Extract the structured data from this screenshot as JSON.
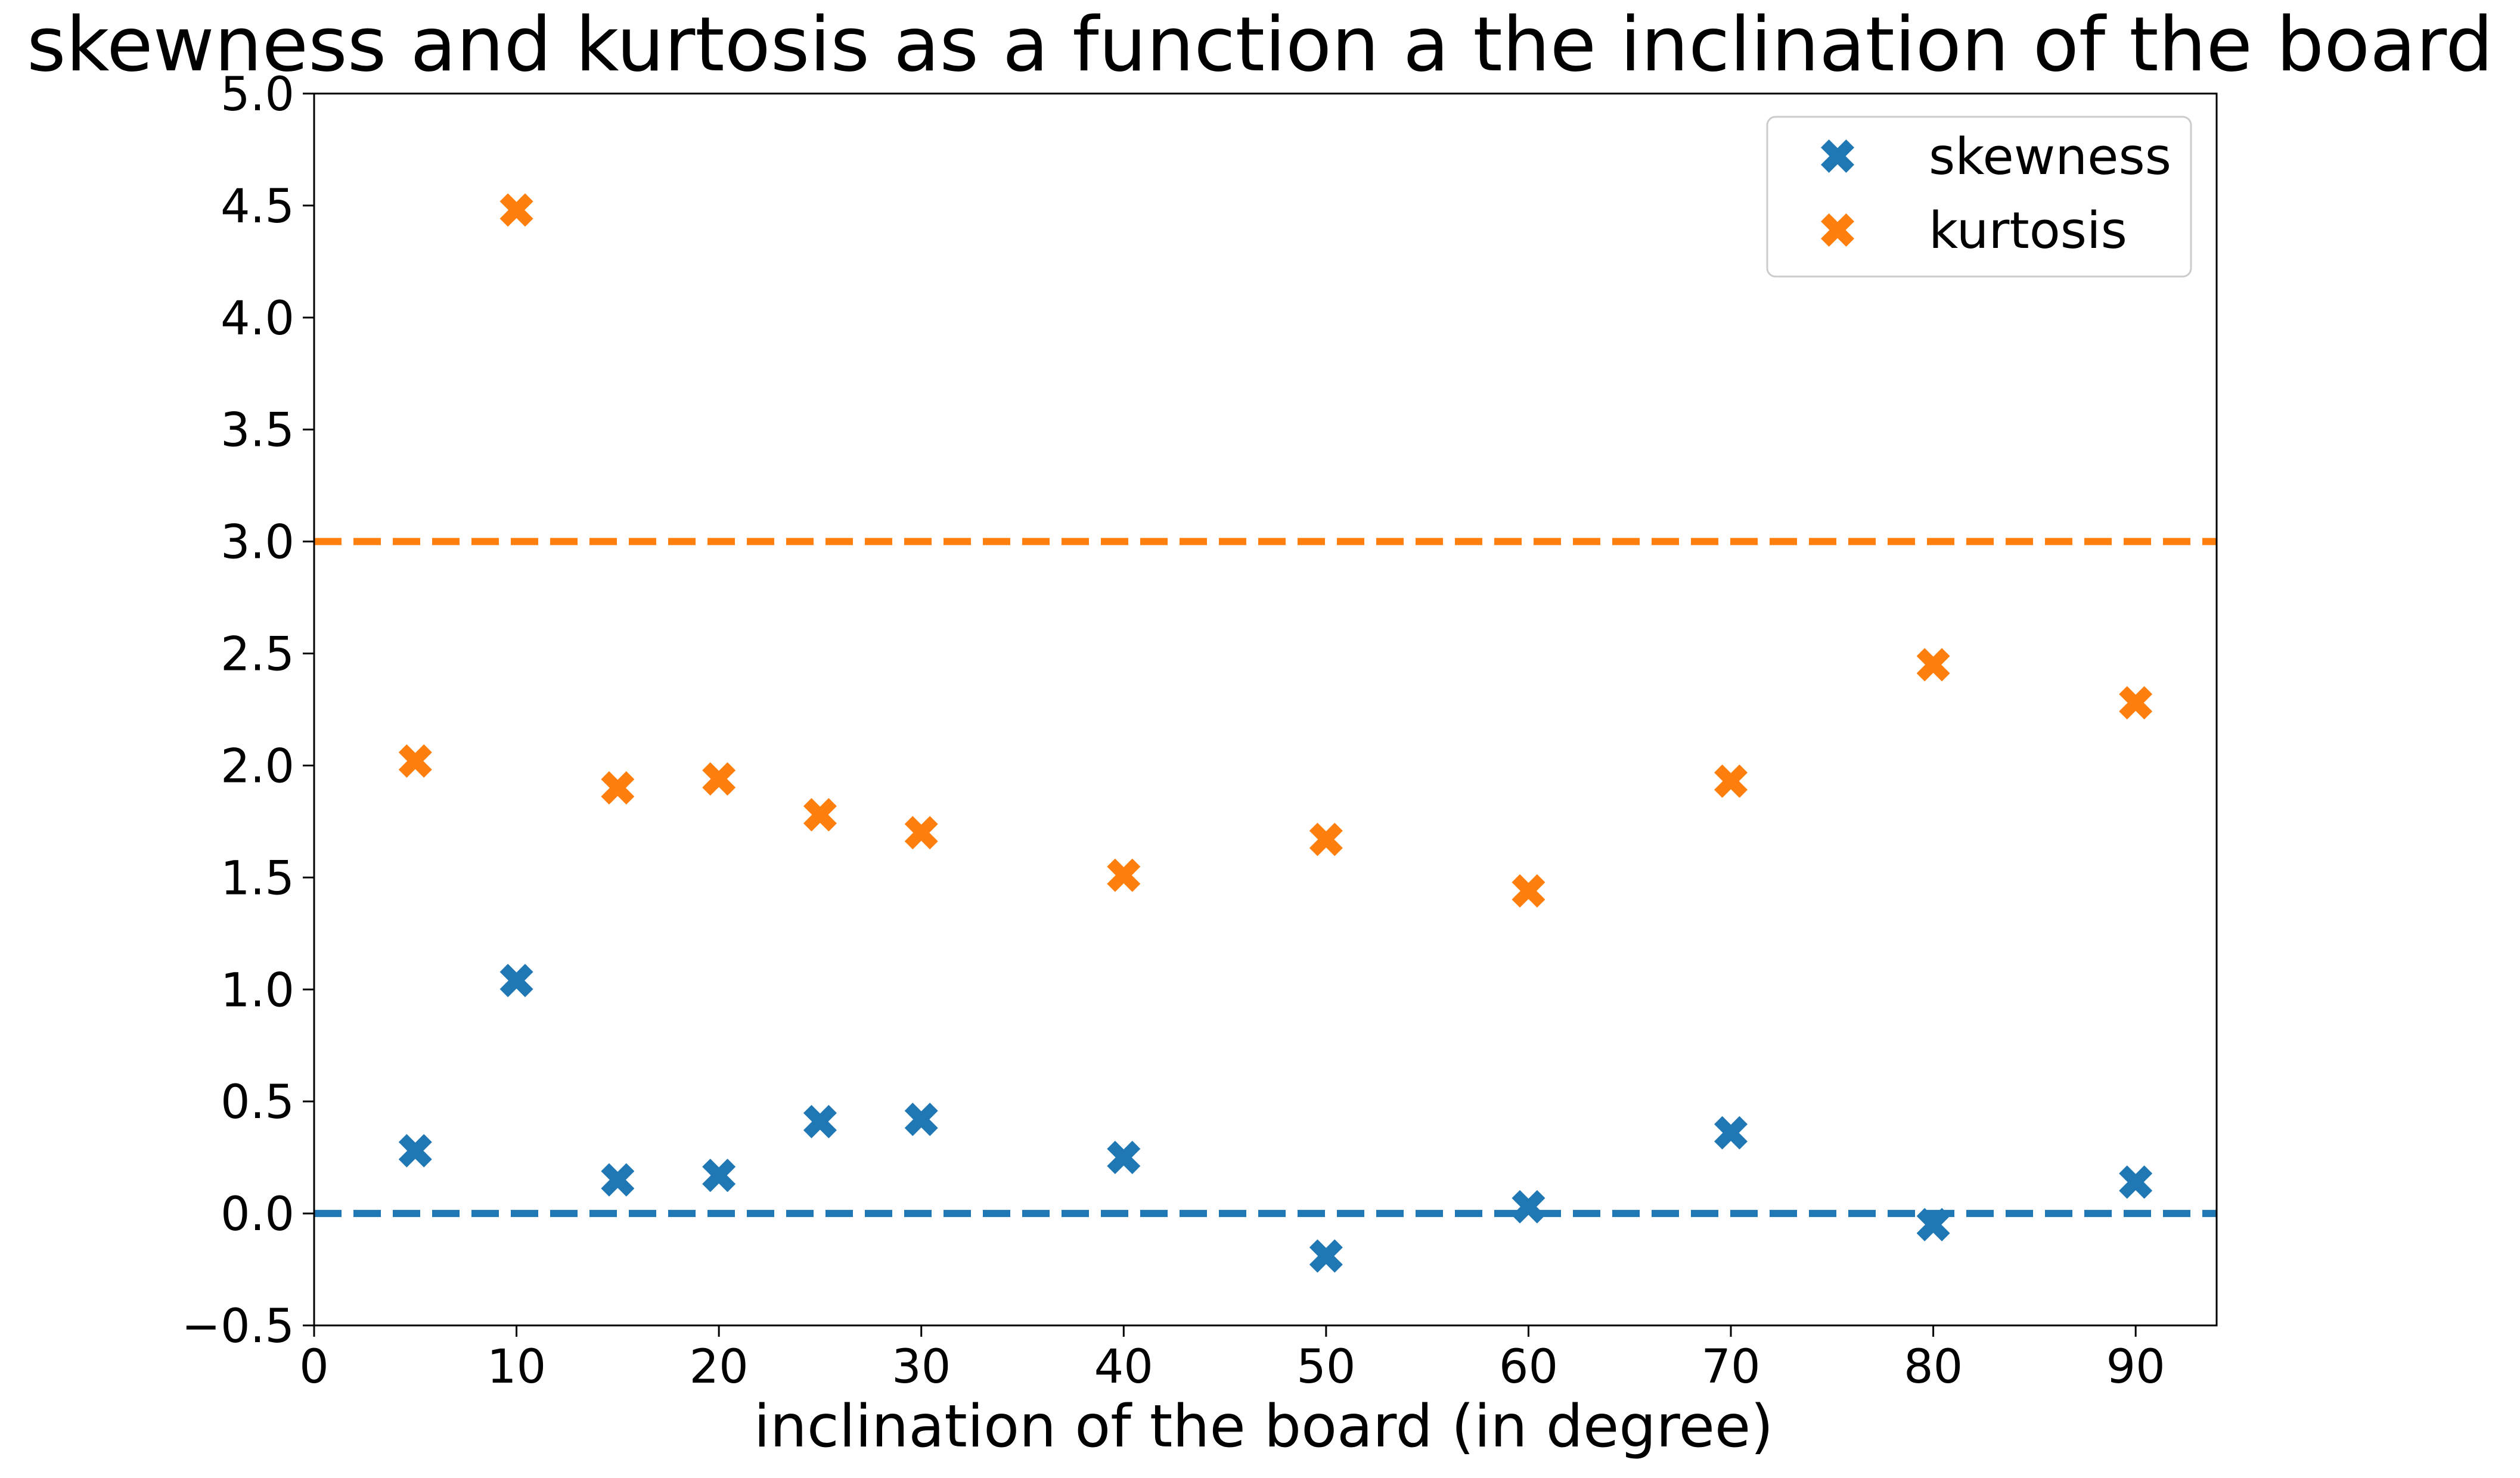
{
  "chart_data": {
    "type": "scatter",
    "title": "skewness and kurtosis as a function a the inclination of the board",
    "xlabel": "inclination of the board (in degree)",
    "ylabel": "",
    "xlim": [
      0,
      94
    ],
    "ylim": [
      -0.5,
      5.0
    ],
    "xticks": [
      0,
      10,
      20,
      30,
      40,
      50,
      60,
      70,
      80,
      90
    ],
    "yticks": [
      -0.5,
      0.0,
      0.5,
      1.0,
      1.5,
      2.0,
      2.5,
      3.0,
      3.5,
      4.0,
      4.5,
      5.0
    ],
    "xtick_labels": [
      "0",
      "10",
      "20",
      "30",
      "40",
      "50",
      "60",
      "70",
      "80",
      "90"
    ],
    "ytick_labels": [
      "−0.5",
      "0.0",
      "0.5",
      "1.0",
      "1.5",
      "2.0",
      "2.5",
      "3.0",
      "3.5",
      "4.0",
      "4.5",
      "5.0"
    ],
    "grid": false,
    "legend_position": "top-right",
    "marker": "X",
    "series": [
      {
        "name": "skewness",
        "color": "#1f77b4",
        "x": [
          5,
          10,
          15,
          20,
          25,
          30,
          40,
          50,
          60,
          70,
          80,
          90
        ],
        "y": [
          0.28,
          1.04,
          0.15,
          0.17,
          0.41,
          0.42,
          0.25,
          -0.19,
          0.03,
          0.36,
          -0.05,
          0.14
        ]
      },
      {
        "name": "kurtosis",
        "color": "#ff7f0e",
        "x": [
          5,
          10,
          15,
          20,
          25,
          30,
          40,
          50,
          60,
          70,
          80,
          90
        ],
        "y": [
          2.02,
          4.48,
          1.9,
          1.94,
          1.78,
          1.7,
          1.51,
          1.67,
          1.44,
          1.93,
          2.45,
          2.28
        ]
      }
    ],
    "reference_lines": [
      {
        "y": 0.0,
        "color": "#1f77b4",
        "style": "dashed"
      },
      {
        "y": 3.0,
        "color": "#ff7f0e",
        "style": "dashed"
      }
    ]
  }
}
